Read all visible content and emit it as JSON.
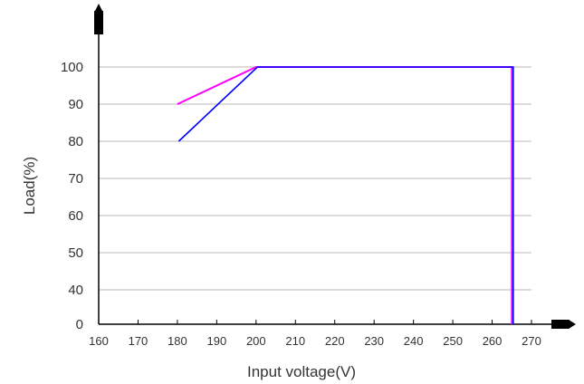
{
  "chart_data": {
    "type": "line",
    "xlabel": "Input voltage(V)",
    "ylabel": "Load(%)",
    "x_ticks": [
      160,
      170,
      180,
      190,
      200,
      210,
      220,
      230,
      240,
      250,
      260,
      270
    ],
    "y_ticks": [
      0,
      40,
      50,
      60,
      70,
      80,
      90,
      100
    ],
    "grid": "horizontal",
    "series": [
      {
        "color": "#ff00ff",
        "points": [
          [
            180,
            90
          ],
          [
            200,
            100
          ],
          [
            265,
            100
          ],
          [
            265,
            0
          ]
        ]
      },
      {
        "color": "#0000ff",
        "points": [
          [
            180,
            80
          ],
          [
            200,
            100
          ],
          [
            265,
            100
          ],
          [
            265,
            0
          ]
        ]
      }
    ]
  }
}
